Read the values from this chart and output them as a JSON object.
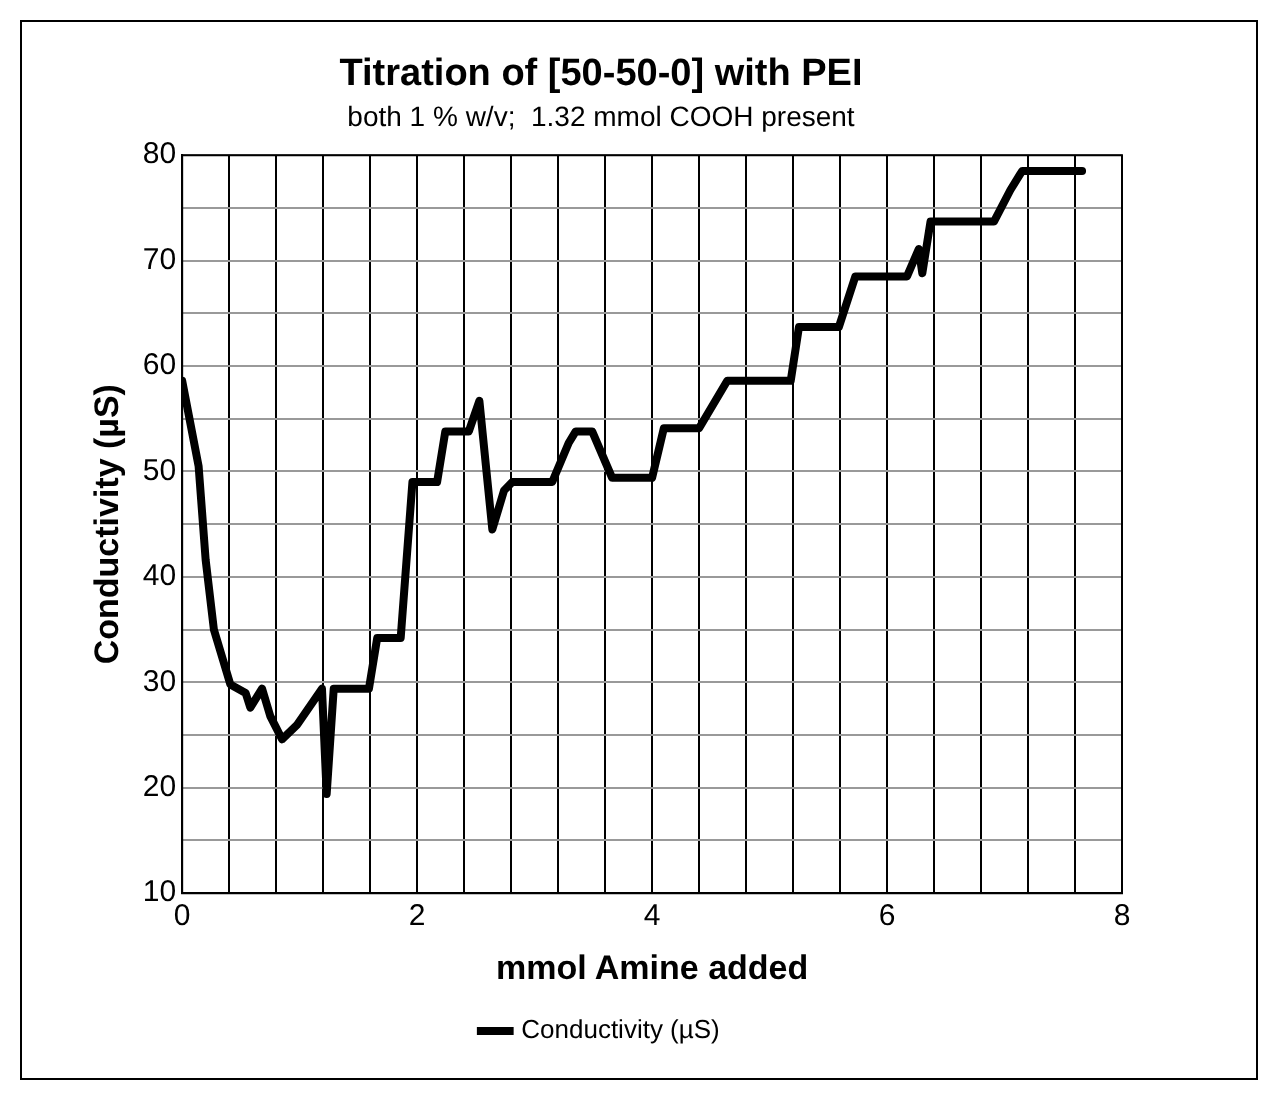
{
  "chart_data": {
    "type": "line",
    "title": "Titration of [50-50-0] with PEI",
    "subtitle": "both 1 % w/v;  1.32 mmol COOH present",
    "xlabel": "mmol Amine added",
    "ylabel": "Conductivity (µS)",
    "xlim": [
      0,
      8
    ],
    "ylim": [
      10,
      80
    ],
    "xticks": [
      0,
      {
        "value": 0.4,
        "label": null
      },
      {
        "value": 0.8,
        "label": null
      },
      {
        "value": 1.2,
        "label": null
      },
      {
        "value": 1.6,
        "label": null
      },
      2,
      {
        "value": 2.4,
        "label": null
      },
      {
        "value": 2.8,
        "label": null
      },
      {
        "value": 3.2,
        "label": null
      },
      {
        "value": 3.6,
        "label": null
      },
      4,
      {
        "value": 4.4,
        "label": null
      },
      {
        "value": 4.8,
        "label": null
      },
      {
        "value": 5.2,
        "label": null
      },
      {
        "value": 5.6,
        "label": null
      },
      6,
      {
        "value": 6.4,
        "label": null
      },
      {
        "value": 6.8,
        "label": null
      },
      {
        "value": 7.2,
        "label": null
      },
      {
        "value": 7.6,
        "label": null
      },
      8
    ],
    "yticks": [
      10,
      {
        "value": 15,
        "label": null
      },
      20,
      {
        "value": 25,
        "label": null
      },
      30,
      {
        "value": 35,
        "label": null
      },
      40,
      {
        "value": 45,
        "label": null
      },
      50,
      {
        "value": 55,
        "label": null
      },
      60,
      {
        "value": 65,
        "label": null
      },
      70,
      {
        "value": 75,
        "label": null
      },
      80
    ],
    "grid": true,
    "legend": "bottom",
    "marker": "none",
    "line_style": "solid",
    "series": [
      {
        "name": "Conductivity (µS)",
        "color": "#000000",
        "x": [
          0,
          0.14,
          0.2,
          0.27,
          0.41,
          0.54,
          0.58,
          0.68,
          0.75,
          0.85,
          0.98,
          1.19,
          1.23,
          1.29,
          1.59,
          1.66,
          1.86,
          1.96,
          2.17,
          2.24,
          2.44,
          2.53,
          2.64,
          2.74,
          2.81,
          3.15,
          3.29,
          3.35,
          3.49,
          3.66,
          4.0,
          4.1,
          4.4,
          4.64,
          5.18,
          5.25,
          5.59,
          5.73,
          6.17,
          6.27,
          6.3,
          6.37,
          6.91,
          7.05,
          7.15,
          7.66
        ],
        "values": [
          58.6,
          50.5,
          41.6,
          35,
          29.8,
          29,
          27.6,
          29.4,
          26.8,
          24.6,
          26,
          29.4,
          19.4,
          29.4,
          29.4,
          34.2,
          34.2,
          49,
          49,
          53.8,
          53.8,
          56.7,
          44.5,
          48.2,
          49,
          49,
          52.7,
          53.8,
          53.8,
          49.4,
          49.4,
          54.1,
          54.1,
          58.6,
          58.6,
          63.7,
          63.7,
          68.5,
          68.5,
          71.1,
          68.8,
          73.7,
          73.7,
          76.7,
          78.5,
          78.5
        ]
      }
    ]
  }
}
